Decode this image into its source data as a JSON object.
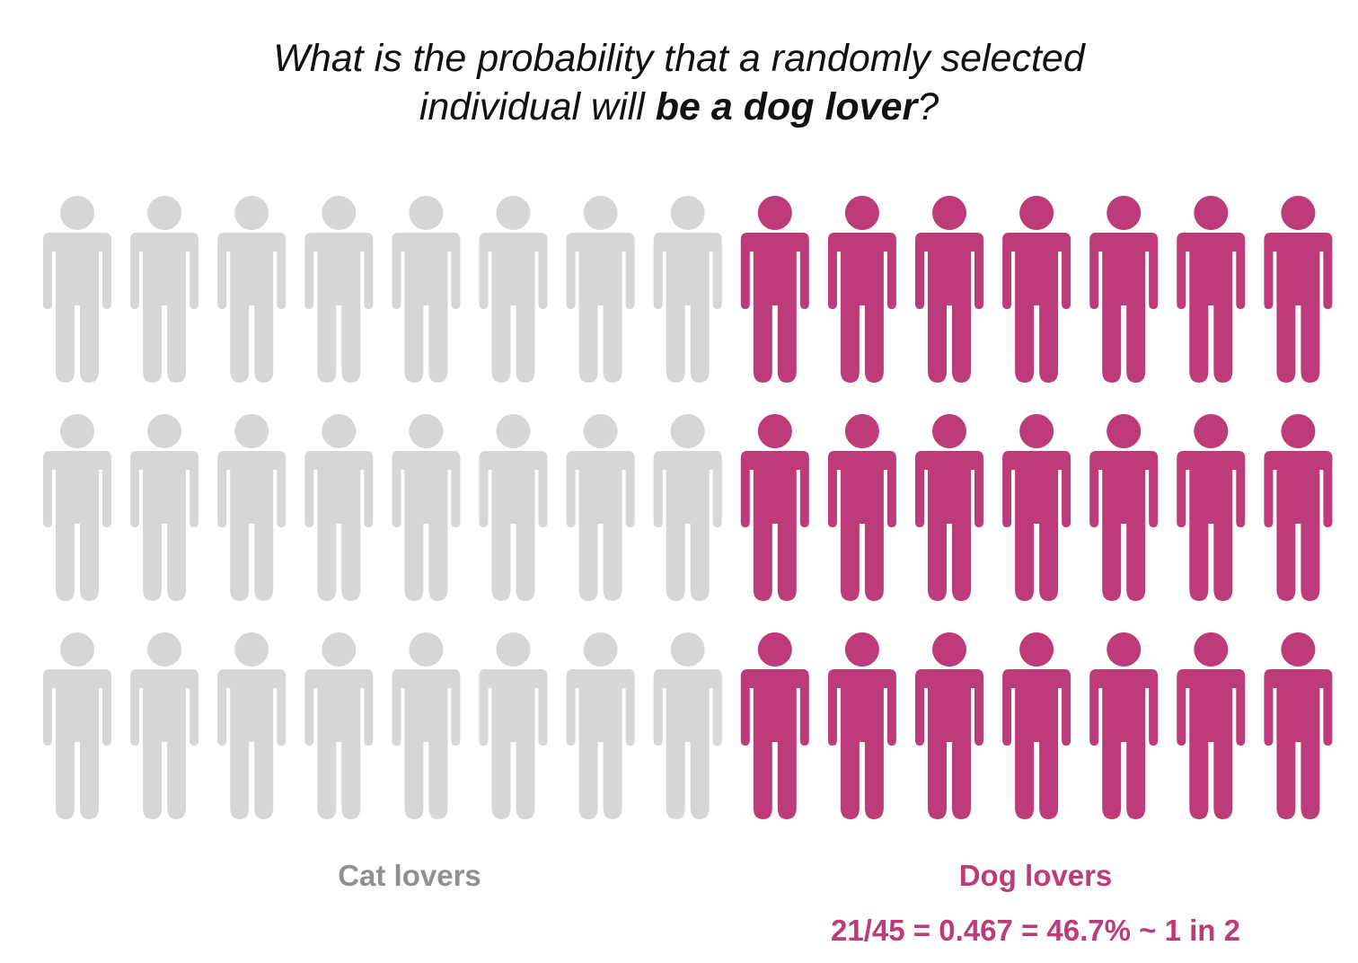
{
  "question": {
    "line1": "What is the probability that a randomly selected",
    "line2_prefix": "individual will ",
    "line2_bold": "be a dog lover",
    "line2_suffix": "?"
  },
  "chart_data": {
    "type": "pictogram",
    "rows": 3,
    "columns": 15,
    "series": [
      {
        "name": "Cat lovers",
        "count_per_row": 8,
        "count": 24,
        "color": "#d6d6d6"
      },
      {
        "name": "Dog lovers",
        "count_per_row": 7,
        "count": 21,
        "color": "#bc3b78"
      }
    ],
    "total": 45
  },
  "labels": {
    "cat": "Cat lovers",
    "dog": "Dog lovers",
    "formula": "21/45 = 0.467 = 46.7% ~ 1 in 2"
  },
  "colors": {
    "cat": "#d6d6d6",
    "dog": "#bc3b78",
    "cat_label": "#909090",
    "dog_label": "#bc3b78",
    "text": "#111111"
  },
  "icons": {
    "person": "person-icon"
  }
}
